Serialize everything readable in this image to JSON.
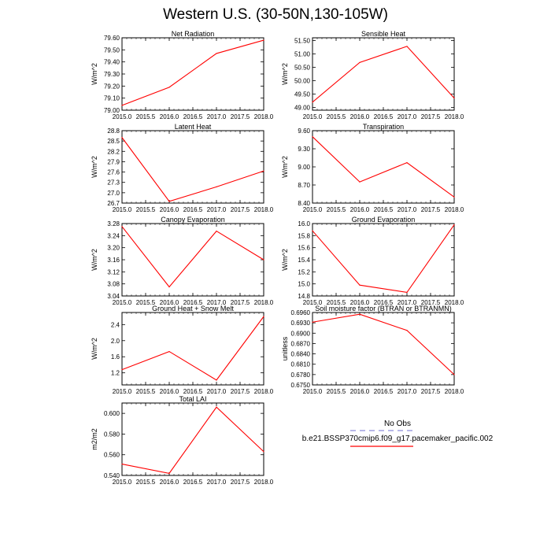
{
  "title": "Western U.S. (30-50N,130-105W)",
  "legend": {
    "obs_label": "No Obs",
    "run_label": "b.e21.BSSP370cmip6.f09_g17.pacemaker_pacific.002",
    "obs_color": "#a0a0e0",
    "run_color": "#ff0000"
  },
  "chart_data": [
    {
      "type": "line",
      "title": "Net Radiation",
      "ylabel": "W/m^2",
      "x": [
        2015,
        2016,
        2017,
        2018
      ],
      "x_ticks": [
        "2015.0",
        "2015.5",
        "2016.0",
        "2016.5",
        "2017.0",
        "2017.5",
        "2018.0"
      ],
      "xlim": [
        2015,
        2018
      ],
      "ylim": [
        79.0,
        79.6
      ],
      "y_ticks": [
        "79.00",
        "79.10",
        "79.20",
        "79.30",
        "79.40",
        "79.50",
        "79.60"
      ],
      "series": [
        {
          "values": [
            79.04,
            79.19,
            79.47,
            79.58
          ],
          "color": "#ff0000"
        }
      ]
    },
    {
      "type": "line",
      "title": "Sensible Heat",
      "ylabel": "W/m^2",
      "x": [
        2015,
        2016,
        2017,
        2018
      ],
      "x_ticks": [
        "2015.0",
        "2015.5",
        "2016.0",
        "2016.5",
        "2017.0",
        "2017.5",
        "2018.0"
      ],
      "xlim": [
        2015,
        2018
      ],
      "ylim": [
        48.9,
        51.6
      ],
      "y_ticks": [
        "49.00",
        "49.50",
        "50.00",
        "50.50",
        "51.00",
        "51.50"
      ],
      "series": [
        {
          "values": [
            49.2,
            50.68,
            51.28,
            49.35
          ],
          "color": "#ff0000"
        }
      ]
    },
    {
      "type": "line",
      "title": "Latent Heat",
      "ylabel": "W/m^2",
      "x": [
        2015,
        2016,
        2017,
        2018
      ],
      "x_ticks": [
        "2015.0",
        "2015.5",
        "2016.0",
        "2016.5",
        "2017.0",
        "2017.5",
        "2018.0"
      ],
      "xlim": [
        2015,
        2018
      ],
      "ylim": [
        26.7,
        28.8
      ],
      "y_ticks": [
        "26.7",
        "27.0",
        "27.3",
        "27.6",
        "27.9",
        "28.2",
        "28.5",
        "28.8"
      ],
      "series": [
        {
          "values": [
            28.6,
            26.75,
            27.17,
            27.63
          ],
          "color": "#ff0000"
        }
      ]
    },
    {
      "type": "line",
      "title": "Transpiration",
      "ylabel": "W/m^2",
      "x": [
        2015,
        2016,
        2017,
        2018
      ],
      "x_ticks": [
        "2015.0",
        "2015.5",
        "2016.0",
        "2016.5",
        "2017.0",
        "2017.5",
        "2018.0"
      ],
      "xlim": [
        2015,
        2018
      ],
      "ylim": [
        8.4,
        9.6
      ],
      "y_ticks": [
        "8.40",
        "8.70",
        "9.00",
        "9.30",
        "9.60"
      ],
      "series": [
        {
          "values": [
            9.5,
            8.75,
            9.07,
            8.5
          ],
          "color": "#ff0000"
        }
      ]
    },
    {
      "type": "line",
      "title": "Canopy Evaporation",
      "ylabel": "W/m^2",
      "x": [
        2015,
        2016,
        2017,
        2018
      ],
      "x_ticks": [
        "2015.0",
        "2015.5",
        "2016.0",
        "2016.5",
        "2017.0",
        "2017.5",
        "2018.0"
      ],
      "xlim": [
        2015,
        2018
      ],
      "ylim": [
        3.04,
        3.28
      ],
      "y_ticks": [
        "3.04",
        "3.08",
        "3.12",
        "3.16",
        "3.20",
        "3.24",
        "3.28"
      ],
      "series": [
        {
          "values": [
            3.27,
            3.07,
            3.255,
            3.16
          ],
          "color": "#ff0000"
        }
      ]
    },
    {
      "type": "line",
      "title": "Ground Evaporation",
      "ylabel": "W/m^2",
      "x": [
        2015,
        2016,
        2017,
        2018
      ],
      "x_ticks": [
        "2015.0",
        "2015.5",
        "2016.0",
        "2016.5",
        "2017.0",
        "2017.5",
        "2018.0"
      ],
      "xlim": [
        2015,
        2018
      ],
      "ylim": [
        14.8,
        16.0
      ],
      "y_ticks": [
        "14.8",
        "15.0",
        "15.2",
        "15.4",
        "15.6",
        "15.8",
        "16.0"
      ],
      "series": [
        {
          "values": [
            15.88,
            14.98,
            14.86,
            15.98
          ],
          "color": "#ff0000"
        }
      ]
    },
    {
      "type": "line",
      "title": "Ground Heat + Snow Melt",
      "ylabel": "W/m^2",
      "x": [
        2015,
        2016,
        2017,
        2018
      ],
      "x_ticks": [
        "2015.0",
        "2015.5",
        "2016.0",
        "2016.5",
        "2017.0",
        "2017.5",
        "2018.0"
      ],
      "xlim": [
        2015,
        2018
      ],
      "ylim": [
        0.9,
        2.7
      ],
      "y_ticks": [
        "1.2",
        "1.6",
        "2.0",
        "2.4"
      ],
      "series": [
        {
          "values": [
            1.28,
            1.73,
            1.02,
            2.6
          ],
          "color": "#ff0000"
        }
      ]
    },
    {
      "type": "line",
      "title": "Soil moisture factor (BTRAN or BTRANMN)",
      "ylabel": "unitless",
      "x": [
        2015,
        2016,
        2017,
        2018
      ],
      "x_ticks": [
        "2015.0",
        "2015.5",
        "2016.0",
        "2016.5",
        "2017.0",
        "2017.5",
        "2018.0"
      ],
      "xlim": [
        2015,
        2018
      ],
      "ylim": [
        0.675,
        0.696
      ],
      "y_ticks": [
        "0.6750",
        "0.6780",
        "0.6810",
        "0.6840",
        "0.6870",
        "0.6900",
        "0.6930",
        "0.6960"
      ],
      "series": [
        {
          "values": [
            0.6932,
            0.6955,
            0.6908,
            0.678
          ],
          "color": "#ff0000"
        }
      ]
    },
    {
      "type": "line",
      "title": "Total LAI",
      "ylabel": "m2/m2",
      "x": [
        2015,
        2016,
        2017,
        2018
      ],
      "x_ticks": [
        "2015.0",
        "2015.5",
        "2016.0",
        "2016.5",
        "2017.0",
        "2017.5",
        "2018.0"
      ],
      "xlim": [
        2015,
        2018
      ],
      "ylim": [
        0.54,
        0.61
      ],
      "y_ticks": [
        "0.540",
        "0.560",
        "0.580",
        "0.600"
      ],
      "series": [
        {
          "values": [
            0.551,
            0.542,
            0.606,
            0.563
          ],
          "color": "#ff0000"
        }
      ]
    }
  ]
}
